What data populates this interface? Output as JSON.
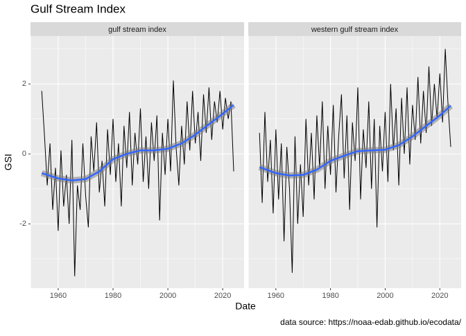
{
  "chart_data": {
    "type": "line",
    "title": "Gulf Stream Index",
    "x_label": "Date",
    "y_label": "GSI",
    "caption": "data source: https://noaa-edab.github.io/ecodata/",
    "xlim": [
      1949.9,
      2027.8
    ],
    "xticks": [
      1960,
      1980,
      2000,
      2020
    ],
    "minor_xticks": [
      1950,
      1970,
      1990,
      2010
    ],
    "ylim": [
      -3.84,
      3.37
    ],
    "yticks": [
      -2,
      0,
      2
    ],
    "minor_yticks": [
      -3,
      -1,
      1,
      3
    ],
    "grid": true,
    "color": "#000000",
    "smooth_color": "#3366ff",
    "x": [
      1954,
      1955,
      1956,
      1957,
      1958,
      1959,
      1960,
      1961,
      1962,
      1963,
      1964,
      1965,
      1966,
      1967,
      1968,
      1969,
      1970,
      1971,
      1972,
      1973,
      1974,
      1975,
      1976,
      1977,
      1978,
      1979,
      1980,
      1981,
      1982,
      1983,
      1984,
      1985,
      1986,
      1987,
      1988,
      1989,
      1990,
      1991,
      1992,
      1993,
      1994,
      1995,
      1996,
      1997,
      1998,
      1999,
      2000,
      2001,
      2002,
      2003,
      2004,
      2005,
      2006,
      2007,
      2008,
      2009,
      2010,
      2011,
      2012,
      2013,
      2014,
      2015,
      2016,
      2017,
      2018,
      2019,
      2020,
      2021,
      2022,
      2023,
      2024
    ],
    "smooth_x": [
      1954,
      1960,
      1965,
      1970,
      1975,
      1980,
      1985,
      1990,
      1995,
      2000,
      2005,
      2010,
      2015,
      2020,
      2024
    ],
    "facets": [
      {
        "title": "gulf stream index",
        "values": [
          1.8,
          0.5,
          -0.9,
          0.3,
          -1.6,
          -0.4,
          -2.2,
          0.1,
          -1.5,
          -0.6,
          -2.0,
          0.4,
          -3.5,
          -0.9,
          -1.6,
          0.3,
          -1.2,
          -2.1,
          0.5,
          -0.5,
          0.9,
          -1.1,
          -0.2,
          -1.5,
          0.7,
          -0.6,
          1.0,
          -0.8,
          0.3,
          -1.5,
          0.8,
          -0.4,
          1.2,
          -0.9,
          0.6,
          -0.3,
          1.3,
          -0.8,
          0.5,
          -1.0,
          0.9,
          -0.2,
          1.1,
          -1.9,
          0.6,
          -0.6,
          1.0,
          -0.5,
          2.1,
          0.2,
          -0.9,
          0.8,
          -0.3,
          1.5,
          0.1,
          1.8,
          0.3,
          1.2,
          -0.2,
          1.7,
          0.6,
          1.9,
          0.4,
          1.5,
          0.9,
          1.8,
          0.7,
          1.6,
          1.0,
          1.5,
          -0.5
        ],
        "smooth_values": [
          -0.55,
          -0.7,
          -0.76,
          -0.72,
          -0.5,
          -0.15,
          0.0,
          0.1,
          0.1,
          0.15,
          0.3,
          0.55,
          0.85,
          1.15,
          1.4
        ]
      },
      {
        "title": "western gulf stream index",
        "values": [
          0.6,
          -1.4,
          1.2,
          -0.8,
          0.4,
          -1.7,
          0.7,
          -1.3,
          0.3,
          -2.5,
          0.2,
          -1.0,
          -3.4,
          0.5,
          -2.0,
          -0.3,
          -1.8,
          1.0,
          -0.9,
          0.6,
          -1.3,
          1.1,
          -0.4,
          1.5,
          -1.0,
          0.8,
          -0.6,
          1.4,
          -1.1,
          0.5,
          1.7,
          -0.7,
          1.1,
          -1.6,
          0.9,
          -0.2,
          1.9,
          -1.3,
          0.7,
          -0.4,
          1.5,
          -1.0,
          1.0,
          -2.1,
          0.8,
          -0.5,
          1.2,
          -0.8,
          2.0,
          0.1,
          1.3,
          -0.9,
          1.6,
          0.0,
          1.9,
          -0.3,
          1.4,
          0.4,
          2.2,
          0.3,
          1.8,
          0.6,
          2.5,
          0.8,
          2.0,
          1.0,
          2.3,
          0.9,
          3.0,
          1.4,
          0.2
        ],
        "smooth_values": [
          -0.38,
          -0.55,
          -0.62,
          -0.6,
          -0.45,
          -0.2,
          -0.05,
          0.08,
          0.1,
          0.12,
          0.25,
          0.5,
          0.8,
          1.1,
          1.38
        ]
      }
    ]
  }
}
